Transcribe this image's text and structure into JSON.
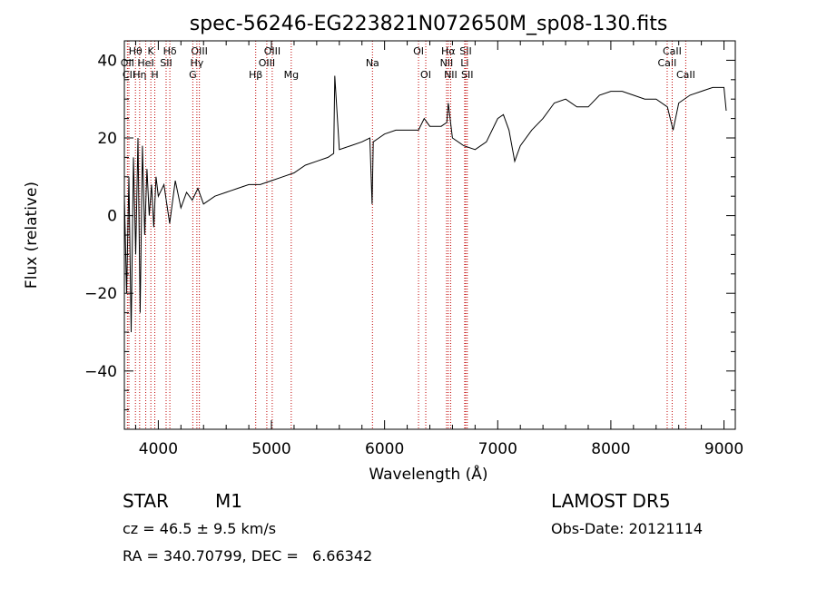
{
  "chart_data": {
    "type": "line",
    "title": "spec-56246-EG223821N072650M_sp08-130.fits",
    "xlabel": "Wavelength (Å)",
    "ylabel": "Flux (relative)",
    "xlim": [
      3700,
      9100
    ],
    "ylim": [
      -55,
      45
    ],
    "xticks": [
      "4000",
      "5000",
      "6000",
      "7000",
      "8000",
      "9000"
    ],
    "yticks": [
      "−40",
      "−20",
      "0",
      "20",
      "40"
    ],
    "xtick_values": [
      4000,
      5000,
      6000,
      7000,
      8000,
      9000
    ],
    "ytick_values": [
      -40,
      -20,
      0,
      20,
      40
    ],
    "line_color": "#000000",
    "marker_color": "#c00000",
    "spectrum": {
      "x": [
        3700,
        3720,
        3740,
        3760,
        3780,
        3800,
        3820,
        3840,
        3860,
        3880,
        3900,
        3920,
        3940,
        3960,
        3980,
        4000,
        4050,
        4100,
        4150,
        4200,
        4250,
        4300,
        4350,
        4400,
        4500,
        4600,
        4700,
        4800,
        4900,
        5000,
        5100,
        5200,
        5300,
        5400,
        5500,
        5550,
        5560,
        5600,
        5700,
        5800,
        5870,
        5890,
        5900,
        5950,
        6000,
        6100,
        6200,
        6300,
        6350,
        6400,
        6500,
        6550,
        6563,
        6600,
        6700,
        6800,
        6900,
        7000,
        7050,
        7100,
        7150,
        7200,
        7300,
        7400,
        7500,
        7600,
        7700,
        7800,
        7900,
        8000,
        8100,
        8200,
        8300,
        8400,
        8500,
        8550,
        8600,
        8700,
        8800,
        8900,
        9000,
        9020
      ],
      "y": [
        5,
        -20,
        10,
        -30,
        15,
        -10,
        20,
        -25,
        18,
        -5,
        12,
        0,
        8,
        -3,
        10,
        5,
        8,
        -2,
        9,
        2,
        6,
        4,
        7,
        3,
        5,
        6,
        7,
        8,
        8,
        9,
        10,
        11,
        13,
        14,
        15,
        16,
        36,
        17,
        18,
        19,
        20,
        3,
        19,
        20,
        21,
        22,
        22,
        22,
        25,
        23,
        23,
        24,
        29,
        20,
        18,
        17,
        19,
        25,
        26,
        22,
        14,
        18,
        22,
        25,
        29,
        30,
        28,
        28,
        31,
        32,
        32,
        31,
        30,
        30,
        28,
        22,
        29,
        31,
        32,
        33,
        33,
        27
      ]
    },
    "emission_lines": [
      {
        "label": "OII",
        "x": 3727,
        "row": 1
      },
      {
        "label": "Hθ",
        "x": 3798,
        "row": 0
      },
      {
        "label": "Hη",
        "x": 3835,
        "row": 2
      },
      {
        "label": "CII",
        "x": 3740,
        "row": 2
      },
      {
        "label": "K",
        "x": 3934,
        "row": 0
      },
      {
        "label": "HeI",
        "x": 3889,
        "row": 1
      },
      {
        "label": "H",
        "x": 3969,
        "row": 2
      },
      {
        "label": "SII",
        "x": 4069,
        "row": 1
      },
      {
        "label": "Hδ",
        "x": 4102,
        "row": 0
      },
      {
        "label": "OIII",
        "x": 4363,
        "row": 0
      },
      {
        "label": "Hγ",
        "x": 4341,
        "row": 1
      },
      {
        "label": "G",
        "x": 4305,
        "row": 2
      },
      {
        "label": "Hβ",
        "x": 4861,
        "row": 2
      },
      {
        "label": "OIII",
        "x": 4959,
        "row": 1
      },
      {
        "label": "OIII",
        "x": 5007,
        "row": 0
      },
      {
        "label": "Mg",
        "x": 5175,
        "row": 2
      },
      {
        "label": "Na",
        "x": 5893,
        "row": 1
      },
      {
        "label": "OI",
        "x": 6300,
        "row": 0
      },
      {
        "label": "OI",
        "x": 6364,
        "row": 2
      },
      {
        "label": "NII",
        "x": 6548,
        "row": 1
      },
      {
        "label": "Hα",
        "x": 6563,
        "row": 0
      },
      {
        "label": "NII",
        "x": 6584,
        "row": 2
      },
      {
        "label": "SII",
        "x": 6717,
        "row": 0
      },
      {
        "label": "Li",
        "x": 6708,
        "row": 1
      },
      {
        "label": "SII",
        "x": 6731,
        "row": 2
      },
      {
        "label": "CaII",
        "x": 8498,
        "row": 1
      },
      {
        "label": "CaII",
        "x": 8542,
        "row": 0
      },
      {
        "label": "CaII",
        "x": 8662,
        "row": 2
      }
    ]
  },
  "footer": {
    "class_label": "STAR",
    "subclass": "M1",
    "survey": "LAMOST DR5",
    "cz": "cz = 46.5 ± 9.5 km/s",
    "obs_date": "Obs-Date: 20121114",
    "coords": "RA = 340.70799, DEC =   6.66342"
  }
}
